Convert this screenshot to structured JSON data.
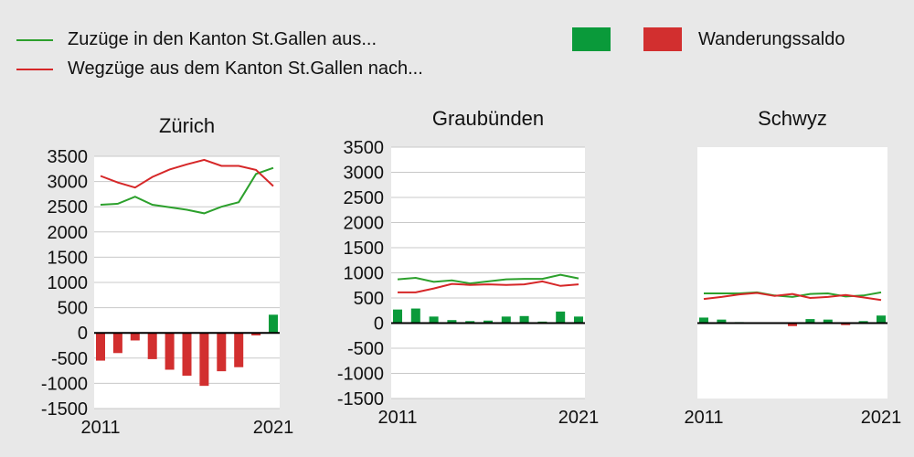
{
  "legend": {
    "zuzuege_label": "Zuzüge in den Kanton St.Gallen aus...",
    "wegzuege_label": "Wegzüge aus dem Kanton St.Gallen nach...",
    "saldo_label": "Wanderungssaldo"
  },
  "colors": {
    "zuzuege": "#2ca02c",
    "wegzuege": "#d62728",
    "saldo_positive": "#0a9a3a",
    "saldo_negative": "#d22f2f",
    "zero_line": "#000000",
    "plot_bg": "#ffffff",
    "grid": "#c8c8c8"
  },
  "chart_data": [
    {
      "type": "line",
      "title": "Zürich",
      "x": [
        2011,
        2012,
        2013,
        2014,
        2015,
        2016,
        2017,
        2018,
        2019,
        2020,
        2021
      ],
      "x_tick_labels": [
        "2011",
        "2021"
      ],
      "y_ticks": [
        3500,
        3000,
        2500,
        2000,
        1500,
        1000,
        500,
        0,
        -500,
        -1000,
        -1500
      ],
      "ylim": [
        -1500,
        3500
      ],
      "grid": true,
      "series": [
        {
          "key": "zuzuege",
          "type": "line",
          "values": [
            2540,
            2560,
            2700,
            2540,
            2490,
            2440,
            2370,
            2500,
            2590,
            3150,
            3270
          ]
        },
        {
          "key": "wegzuege",
          "type": "line",
          "values": [
            3110,
            2980,
            2880,
            3090,
            3240,
            3340,
            3430,
            3310,
            3310,
            3230,
            2910
          ]
        },
        {
          "key": "saldo",
          "type": "bar",
          "values": [
            -550,
            -400,
            -150,
            -520,
            -730,
            -850,
            -1050,
            -760,
            -680,
            -50,
            360
          ]
        }
      ]
    },
    {
      "type": "line",
      "title": "Graubünden",
      "x": [
        2011,
        2012,
        2013,
        2014,
        2015,
        2016,
        2017,
        2018,
        2019,
        2020,
        2021
      ],
      "x_tick_labels": [
        "2011",
        "2021"
      ],
      "y_ticks": [
        3500,
        3000,
        2500,
        2000,
        1500,
        1000,
        500,
        0,
        -500,
        -1000,
        -1500
      ],
      "ylim": [
        -1500,
        3500
      ],
      "grid": true,
      "series": [
        {
          "key": "zuzuege",
          "type": "line",
          "values": [
            870,
            900,
            820,
            850,
            790,
            830,
            870,
            880,
            880,
            960,
            890
          ]
        },
        {
          "key": "wegzuege",
          "type": "line",
          "values": [
            610,
            610,
            690,
            780,
            760,
            770,
            760,
            770,
            830,
            740,
            770
          ]
        },
        {
          "key": "saldo",
          "type": "bar",
          "values": [
            270,
            290,
            130,
            60,
            40,
            50,
            130,
            140,
            30,
            230,
            130
          ]
        }
      ]
    },
    {
      "type": "line",
      "title": "Schwyz",
      "x": [
        2011,
        2012,
        2013,
        2014,
        2015,
        2016,
        2017,
        2018,
        2019,
        2020,
        2021
      ],
      "x_tick_labels": [
        "2011",
        "2021"
      ],
      "y_ticks": [
        3500,
        3000,
        2500,
        2000,
        1500,
        1000,
        500,
        0,
        -500,
        -1000,
        -1500
      ],
      "ylim": [
        -1500,
        3500
      ],
      "grid": false,
      "series": [
        {
          "key": "zuzuege",
          "type": "line",
          "values": [
            590,
            590,
            590,
            610,
            550,
            520,
            580,
            590,
            530,
            550,
            610
          ]
        },
        {
          "key": "wegzuege",
          "type": "line",
          "values": [
            480,
            520,
            570,
            600,
            540,
            580,
            500,
            520,
            560,
            510,
            460
          ]
        },
        {
          "key": "saldo",
          "type": "bar",
          "values": [
            110,
            70,
            20,
            10,
            10,
            -60,
            80,
            70,
            -40,
            40,
            150
          ]
        }
      ]
    }
  ]
}
